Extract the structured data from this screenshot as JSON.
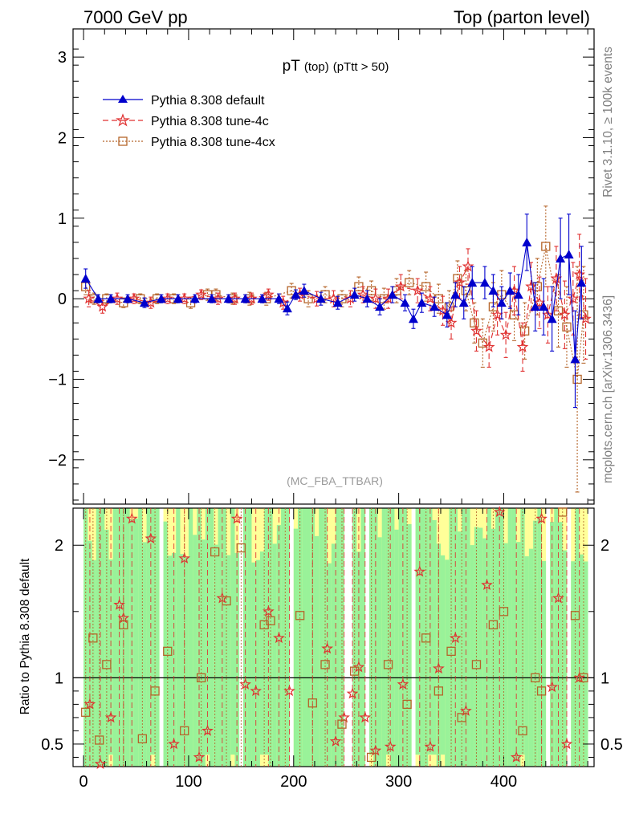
{
  "header": {
    "left": "7000 GeV pp",
    "right": "Top (parton level)"
  },
  "side_labels": {
    "rivet": "Rivet 3.1.10, ≥ 100k events",
    "arxiv": "mcplots.cern.ch [arXiv:1306.3436]"
  },
  "plot_title": {
    "main": "pT",
    "sub1": "(top)",
    "sub2": "(pTtt > 50)"
  },
  "analysis_label": "(MC_FBA_TTBAR)",
  "ratio_ylabel": "Ratio to Pythia 8.308 default",
  "colors": {
    "default": "#0000cc",
    "tune4c": "#e03030",
    "tune4cx": "#b5652a",
    "band_green": "#99f299",
    "band_yellow": "#ffff99"
  },
  "chart_data": [
    {
      "type": "line",
      "panel": "main",
      "xlim": [
        -10,
        486
      ],
      "ylim": [
        -2.55,
        3.35
      ],
      "x_ticks": [
        0,
        100,
        200,
        300,
        400
      ],
      "y_ticks": [
        -2,
        -1,
        0,
        1,
        2,
        3
      ],
      "y_tick_labels": [
        "−2",
        "−1",
        "0",
        "1",
        "2",
        "3"
      ],
      "series": [
        {
          "name": "Pythia 8.308 default",
          "marker": "triangle",
          "x": [
            2,
            14,
            26,
            42,
            58,
            74,
            90,
            106,
            122,
            138,
            154,
            170,
            186,
            194,
            202,
            210,
            226,
            242,
            258,
            270,
            282,
            294,
            306,
            314,
            322,
            334,
            346,
            354,
            362,
            370,
            382,
            390,
            398,
            406,
            414,
            422,
            430,
            438,
            446,
            454,
            462,
            468,
            474
          ],
          "y": [
            0.25,
            0.0,
            0.0,
            0.0,
            -0.05,
            0.0,
            0.0,
            0.0,
            0.0,
            0.0,
            0.0,
            0.0,
            0.0,
            -0.12,
            0.05,
            0.1,
            0.0,
            -0.05,
            0.05,
            0.0,
            -0.1,
            0.05,
            -0.05,
            -0.25,
            -0.05,
            -0.1,
            -0.2,
            0.05,
            -0.05,
            0.2,
            0.2,
            0.1,
            -0.05,
            0.1,
            0.05,
            0.7,
            -0.1,
            -0.1,
            -0.25,
            0.5,
            0.55,
            -0.75,
            0.2
          ],
          "err": [
            0.12,
            0.05,
            0.05,
            0.05,
            0.06,
            0.05,
            0.05,
            0.05,
            0.05,
            0.05,
            0.05,
            0.05,
            0.06,
            0.08,
            0.06,
            0.08,
            0.08,
            0.08,
            0.08,
            0.1,
            0.1,
            0.1,
            0.1,
            0.12,
            0.12,
            0.12,
            0.15,
            0.15,
            0.2,
            0.2,
            0.2,
            0.2,
            0.2,
            0.22,
            0.25,
            0.35,
            0.3,
            0.35,
            0.4,
            0.5,
            0.5,
            0.6,
            0.45
          ]
        },
        {
          "name": "Pythia 8.308 tune-4c",
          "marker": "star",
          "x": [
            5,
            18,
            32,
            48,
            64,
            80,
            96,
            112,
            128,
            144,
            160,
            176,
            190,
            206,
            222,
            238,
            254,
            266,
            278,
            290,
            302,
            318,
            330,
            342,
            350,
            358,
            366,
            374,
            386,
            394,
            402,
            410,
            418,
            426,
            434,
            442,
            450,
            458,
            466,
            472,
            478
          ],
          "y": [
            0.0,
            -0.1,
            0.0,
            0.0,
            -0.05,
            0.0,
            0.0,
            0.05,
            0.0,
            0.0,
            0.0,
            0.05,
            -0.05,
            0.05,
            0.0,
            0.0,
            0.0,
            0.05,
            0.0,
            0.0,
            0.15,
            0.1,
            0.0,
            -0.15,
            -0.3,
            0.2,
            0.4,
            -0.4,
            -0.6,
            -0.2,
            -0.45,
            0.1,
            -0.6,
            0.15,
            -0.05,
            -0.2,
            0.25,
            -0.2,
            0.0,
            0.3,
            -0.25
          ],
          "err": [
            0.1,
            0.08,
            0.07,
            0.06,
            0.07,
            0.06,
            0.06,
            0.06,
            0.07,
            0.07,
            0.07,
            0.07,
            0.08,
            0.08,
            0.09,
            0.1,
            0.1,
            0.1,
            0.12,
            0.12,
            0.15,
            0.15,
            0.15,
            0.18,
            0.2,
            0.2,
            0.22,
            0.25,
            0.25,
            0.25,
            0.28,
            0.3,
            0.3,
            0.3,
            0.32,
            0.35,
            0.4,
            0.42,
            0.45,
            0.5,
            0.5
          ]
        },
        {
          "name": "Pythia 8.308 tune-4cx",
          "marker": "square",
          "x": [
            2,
            10,
            22,
            38,
            54,
            70,
            86,
            102,
            118,
            126,
            142,
            158,
            174,
            198,
            214,
            230,
            246,
            262,
            274,
            286,
            298,
            310,
            326,
            338,
            348,
            356,
            364,
            372,
            380,
            390,
            398,
            410,
            420,
            432,
            440,
            452,
            460,
            470,
            476
          ],
          "y": [
            0.15,
            0.0,
            0.0,
            -0.05,
            0.0,
            0.0,
            0.0,
            -0.05,
            0.05,
            0.05,
            0.0,
            0.0,
            0.0,
            0.1,
            0.0,
            0.05,
            0.0,
            0.15,
            0.1,
            0.0,
            0.1,
            0.2,
            0.15,
            0.0,
            -0.1,
            0.25,
            0.1,
            -0.3,
            -0.55,
            -0.1,
            0.05,
            -0.2,
            -0.4,
            0.15,
            0.65,
            -0.15,
            -0.35,
            -1.0,
            -0.2
          ],
          "err": [
            0.1,
            0.07,
            0.06,
            0.06,
            0.06,
            0.06,
            0.06,
            0.07,
            0.07,
            0.07,
            0.07,
            0.08,
            0.08,
            0.09,
            0.1,
            0.1,
            0.1,
            0.12,
            0.12,
            0.13,
            0.15,
            0.15,
            0.18,
            0.18,
            0.2,
            0.22,
            0.25,
            0.25,
            0.3,
            0.3,
            0.3,
            0.32,
            0.35,
            0.35,
            0.5,
            0.45,
            0.5,
            1.4,
            0.6
          ]
        }
      ]
    },
    {
      "type": "area",
      "panel": "ratio",
      "xlim": [
        -10,
        486
      ],
      "ylim": [
        0.33,
        2.28
      ],
      "x_ticks": [
        0,
        100,
        200,
        300,
        400
      ],
      "x_tick_labels": [
        "0",
        "100",
        "200",
        "300",
        "400"
      ],
      "y_ticks": [
        0.5,
        1,
        2
      ],
      "y_tick_labels": [
        "0.5",
        "1",
        "2"
      ],
      "ylabel": "Ratio to Pythia 8.308 default",
      "reference": 1,
      "series": [
        {
          "name": "Pythia 8.308 tune-4c",
          "marker": "star",
          "x": [
            6,
            16,
            26,
            34,
            38,
            46,
            64,
            86,
            96,
            110,
            118,
            132,
            146,
            154,
            164,
            176,
            186,
            196,
            218,
            232,
            240,
            248,
            256,
            262,
            268,
            278,
            292,
            304,
            320,
            330,
            338,
            354,
            364,
            384,
            396,
            412,
            436,
            446,
            452,
            460,
            472
          ],
          "y": [
            0.8,
            0.35,
            0.7,
            1.55,
            1.45,
            2.2,
            2.05,
            0.5,
            1.9,
            0.4,
            0.6,
            1.6,
            2.2,
            0.95,
            0.9,
            1.5,
            1.3,
            0.9,
            0.3,
            1.22,
            0.52,
            0.7,
            0.88,
            1.08,
            0.7,
            0.45,
            0.48,
            0.95,
            1.8,
            0.48,
            1.07,
            1.3,
            0.75,
            1.7,
            2.25,
            0.4,
            2.2,
            0.93,
            1.6,
            0.5,
            1.0
          ]
        },
        {
          "name": "Pythia 8.308 tune-4cx",
          "marker": "square",
          "x": [
            2,
            9,
            15,
            22,
            38,
            56,
            68,
            80,
            96,
            112,
            125,
            136,
            150,
            172,
            178,
            192,
            206,
            218,
            230,
            246,
            258,
            274,
            290,
            308,
            326,
            338,
            350,
            360,
            374,
            390,
            400,
            418,
            430,
            436,
            456,
            468,
            476
          ],
          "y": [
            0.74,
            1.3,
            0.53,
            1.1,
            1.4,
            0.54,
            0.9,
            1.2,
            0.6,
            1.0,
            1.95,
            1.58,
            1.98,
            1.4,
            1.43,
            0.3,
            1.47,
            0.81,
            1.1,
            0.65,
            1.05,
            0.4,
            1.1,
            0.8,
            1.3,
            0.9,
            1.2,
            0.7,
            1.1,
            1.4,
            1.5,
            0.6,
            1.0,
            0.9,
            2.25,
            1.47,
            1.0
          ]
        }
      ]
    }
  ]
}
